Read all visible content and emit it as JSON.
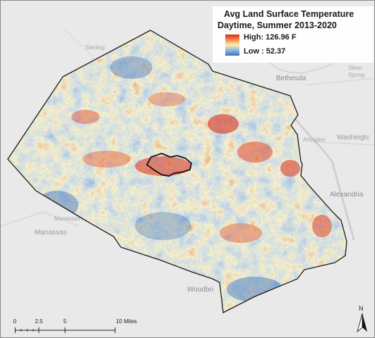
{
  "legend": {
    "title_line1": "Avg Land Surface Temperature",
    "title_line2": "Daytime, Summer 2013-2020",
    "high_label": "High: 126.96 F",
    "low_label": "Low : 52.37",
    "ramp_colors": [
      "#d62a1c",
      "#f7894c",
      "#fbefae",
      "#8fb5d9",
      "#3b6fb8"
    ]
  },
  "basemap_labels": {
    "sterling": "Sterling",
    "bethesda": "Bethesda",
    "silver": "Silver",
    "spring": "Spring",
    "arlington": "Arlington",
    "washington": "Washingtc",
    "alexandria": "Alexandria",
    "manassas": "Manassas",
    "manassas_park": "Manassas Par",
    "woodbridge": "Woodbri"
  },
  "scale_bar": {
    "ticks": [
      "0",
      "2.5",
      "5",
      "10 Miles"
    ],
    "tick_values_miles": [
      0,
      2.5,
      5,
      10
    ]
  },
  "north_arrow": {
    "label": "N"
  },
  "colors": {
    "basemap": "#e9e9e9",
    "county_outline": "#1a1a1a",
    "hot": "#d62a1c",
    "cool": "#3b6fb8",
    "mid": "#fbefae"
  }
}
